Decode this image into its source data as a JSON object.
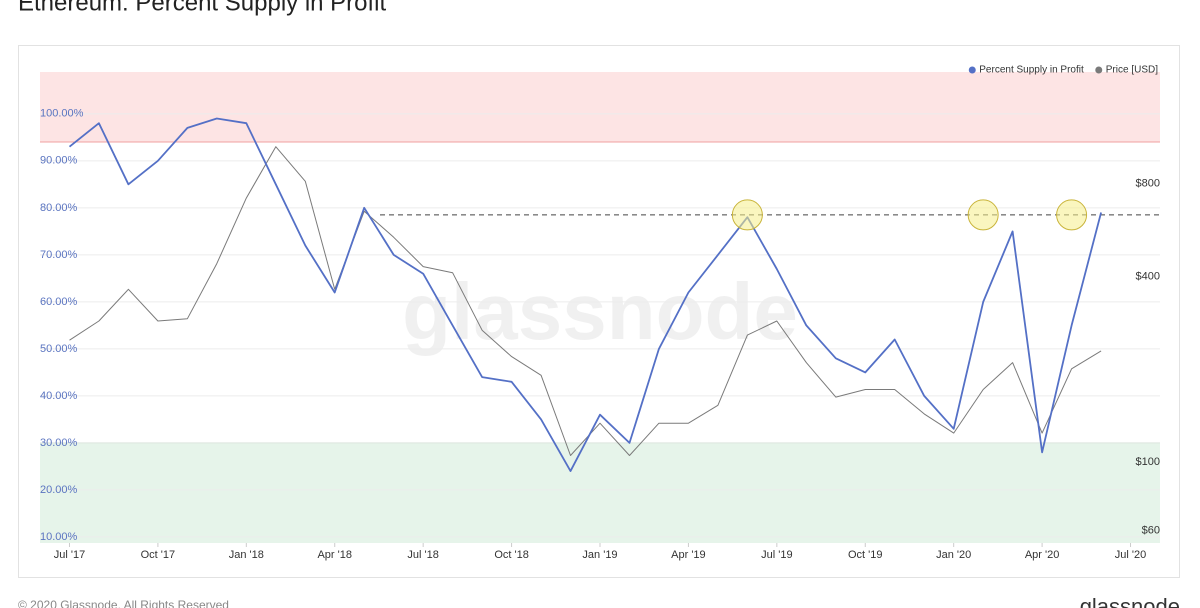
{
  "chart_data": {
    "type": "line",
    "title": "Ethereum: Percent Supply in Profit",
    "footer": "© 2020 Glassnode. All Rights Reserved",
    "brand": "glassnode",
    "watermark": "glassnode",
    "x": [
      "2017-07",
      "2017-08",
      "2017-09",
      "2017-10",
      "2017-11",
      "2017-12",
      "2018-01",
      "2018-02",
      "2018-03",
      "2018-04",
      "2018-05",
      "2018-06",
      "2018-07",
      "2018-08",
      "2018-09",
      "2018-10",
      "2018-11",
      "2018-12",
      "2019-01",
      "2019-02",
      "2019-03",
      "2019-04",
      "2019-05",
      "2019-06",
      "2019-07",
      "2019-08",
      "2019-09",
      "2019-10",
      "2019-11",
      "2019-12",
      "2020-01",
      "2020-02",
      "2020-03",
      "2020-04",
      "2020-05",
      "2020-06"
    ],
    "series": [
      {
        "name": "Price [USD]",
        "color": "#7a7a7a",
        "axis": "y2",
        "values": [
          260,
          300,
          380,
          300,
          305,
          460,
          750,
          1100,
          850,
          380,
          680,
          560,
          450,
          430,
          280,
          230,
          200,
          110,
          140,
          110,
          140,
          140,
          160,
          270,
          300,
          220,
          170,
          180,
          180,
          150,
          130,
          180,
          220,
          130,
          210,
          240
        ]
      },
      {
        "name": "Percent Supply in Profit",
        "color": "#5470c6",
        "values": [
          93,
          98,
          85,
          90,
          97,
          99,
          98,
          85,
          72,
          62,
          80,
          70,
          66,
          55,
          44,
          43,
          35,
          24,
          36,
          30,
          50,
          62,
          70,
          78,
          67,
          55,
          48,
          45,
          52,
          40,
          33,
          60,
          75,
          28,
          55,
          79
        ]
      }
    ],
    "xlim": [
      "2017-06",
      "2020-08"
    ],
    "xticks": [
      {
        "value": "2017-07",
        "label": "Jul '17"
      },
      {
        "value": "2017-10",
        "label": "Oct '17"
      },
      {
        "value": "2018-01",
        "label": "Jan '18"
      },
      {
        "value": "2018-04",
        "label": "Apr '18"
      },
      {
        "value": "2018-07",
        "label": "Jul '18"
      },
      {
        "value": "2018-10",
        "label": "Oct '18"
      },
      {
        "value": "2019-01",
        "label": "Jan '19"
      },
      {
        "value": "2019-04",
        "label": "Apr '19"
      },
      {
        "value": "2019-07",
        "label": "Jul '19"
      },
      {
        "value": "2019-10",
        "label": "Oct '19"
      },
      {
        "value": "2020-01",
        "label": "Jan '20"
      },
      {
        "value": "2020-04",
        "label": "Apr '20"
      },
      {
        "value": "2020-07",
        "label": "Jul '20"
      }
    ],
    "ylim": [
      8.7,
      108.9
    ],
    "yticks": [
      {
        "value": 10,
        "label": "10.00%"
      },
      {
        "value": 20,
        "label": "20.00%"
      },
      {
        "value": 30,
        "label": "30.00%"
      },
      {
        "value": 40,
        "label": "40.00%"
      },
      {
        "value": 50,
        "label": "50.00%"
      },
      {
        "value": 60,
        "label": "60.00%"
      },
      {
        "value": 70,
        "label": "70.00%"
      },
      {
        "value": 80,
        "label": "80.00%"
      },
      {
        "value": 90,
        "label": "90.00%"
      },
      {
        "value": 100,
        "label": "100.00%"
      }
    ],
    "y2lim": [
      57.3,
      1920
    ],
    "y2log": true,
    "y2ticks": [
      {
        "value": 60,
        "label": "$60"
      },
      {
        "value": 100,
        "label": "$100"
      },
      {
        "value": 400,
        "label": "$400"
      },
      {
        "value": 800,
        "label": "$800"
      }
    ],
    "grid": true,
    "legend": "top-right",
    "upper_zone_from": 94,
    "upper_zone_color": "#fde4e4",
    "lower_zone_to": 30,
    "lower_zone_color": "#e6f4ea",
    "threshold": 78.5,
    "highlight_x": [
      "2019-06",
      "2020-02",
      "2020-05"
    ]
  }
}
